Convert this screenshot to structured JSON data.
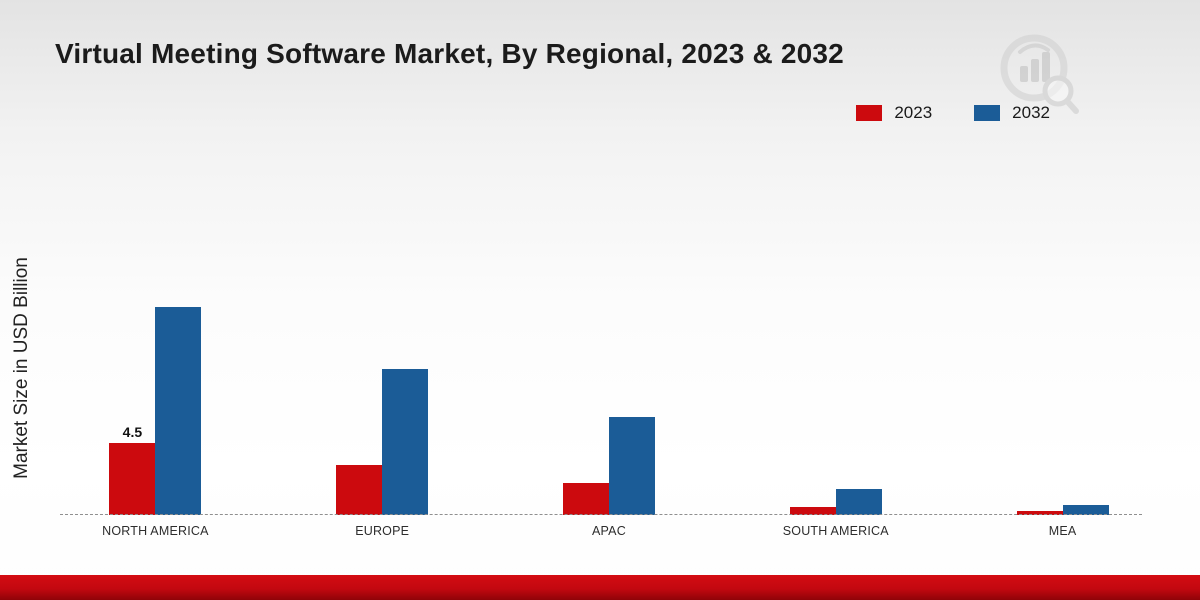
{
  "page": {
    "title": "Virtual Meeting Software Market, By Regional, 2023 & 2032"
  },
  "chart_data": {
    "type": "bar",
    "title": "Virtual Meeting Software Market, By Regional, 2023 & 2032",
    "xlabel": "",
    "ylabel": "Market Size in USD Billion",
    "categories": [
      "NORTH AMERICA",
      "EUROPE",
      "APAC",
      "SOUTH AMERICA",
      "MEA"
    ],
    "series": [
      {
        "name": "2023",
        "color": "#cc0a0e",
        "values": [
          4.5,
          3.1,
          2.0,
          0.5,
          0.25
        ]
      },
      {
        "name": "2032",
        "color": "#1b5c97",
        "values": [
          13.0,
          9.1,
          6.1,
          1.6,
          0.6
        ]
      }
    ],
    "bar_labels": [
      {
        "series": 0,
        "category": 0,
        "text": "4.5"
      }
    ],
    "ylim": [
      0,
      14
    ],
    "legend_position": "top-right",
    "grid": false,
    "baseline_style": "dashed"
  },
  "colors": {
    "series_2023": "#cc0a0e",
    "series_2032": "#1b5c97",
    "bottom_strip": "#c30810"
  }
}
